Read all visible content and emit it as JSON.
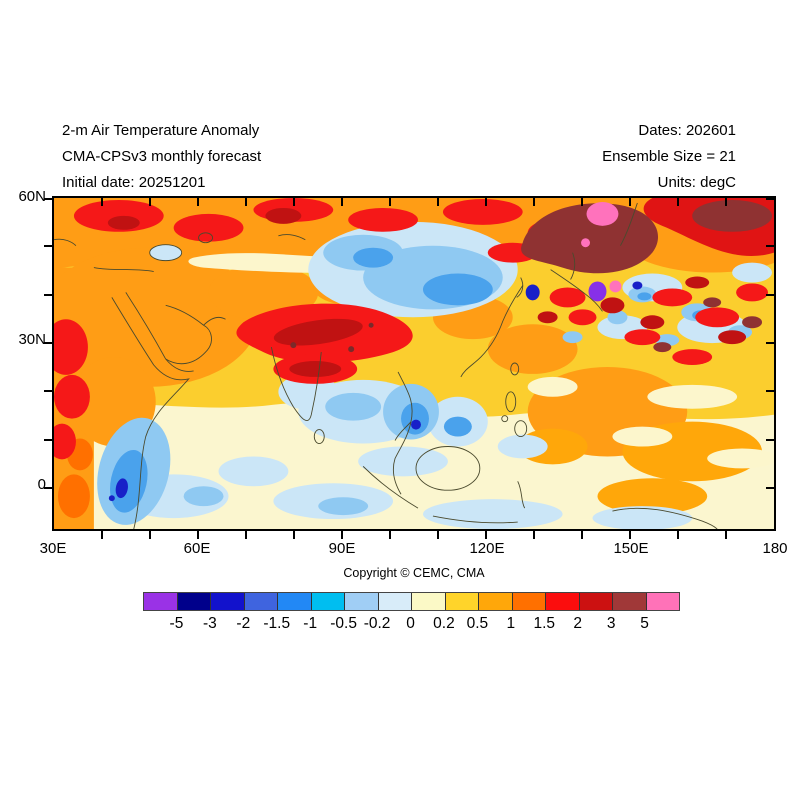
{
  "header": {
    "title": "2-m Air Temperature Anomaly",
    "model": "CMA-CPSv3 monthly forecast",
    "initial_date": "Initial date: 20251201",
    "dates": "Dates: 202601",
    "ensemble": "Ensemble Size = 21",
    "units": "Units: degC"
  },
  "map": {
    "lat_labels": [
      "60N",
      "30N",
      "0"
    ],
    "lon_labels": [
      "30E",
      "60E",
      "90E",
      "120E",
      "150E",
      "180"
    ]
  },
  "copyright": "Copyright © CEMC, CMA",
  "colorbar": {
    "tick_labels": [
      "-5",
      "-3",
      "-2",
      "-1.5",
      "-1",
      "-0.5",
      "-0.2",
      "0",
      "0.2",
      "0.5",
      "1",
      "1.5",
      "2",
      "3",
      "5"
    ],
    "colors": [
      "#9A32E6",
      "#00008B",
      "#1212CC",
      "#3F64DF",
      "#2288F5",
      "#00BEF0",
      "#A0CEF5",
      "#D8ECF9",
      "#FBF9C6",
      "#FFD42A",
      "#FFA70A",
      "#FF7000",
      "#FB0D0D",
      "#CC1111",
      "#A03838",
      "#FF72B8"
    ]
  },
  "chart_data": {
    "type": "heatmap",
    "title": "2-m Air Temperature Anomaly",
    "subtitle": "CMA-CPSv3 monthly forecast",
    "x_ticks": [
      "30E",
      "60E",
      "90E",
      "120E",
      "150E",
      "180"
    ],
    "y_ticks": [
      "60N",
      "30N",
      "0"
    ],
    "units": "degC",
    "contour_levels": [
      -5,
      -3,
      -2,
      -1.5,
      -1,
      -0.5,
      -0.2,
      0,
      0.2,
      0.5,
      1,
      1.5,
      2,
      3,
      5
    ],
    "legend_position": "bottom",
    "notable_features": [
      "strong warm anomaly (1 to >5 degC) across Siberia and Sea of Okhotsk with >5 degC pink core",
      "warm anomaly 2-3 degC over Tibetan Plateau and northern India",
      "cold anomaly -0.5 to -2 degC over central Asia / western China",
      "strong cold spot (< -5 degC purple) in Sea of Japan with adjacent >5 degC pink spot",
      "mottled warm/cold bands over northwest Pacific east of Japan",
      "cold anomaly -1 to -2 degC off Somalia coast near equator",
      "weak warm anomaly 0.2-1 degC over tropical Indian Ocean and west Pacific"
    ]
  }
}
